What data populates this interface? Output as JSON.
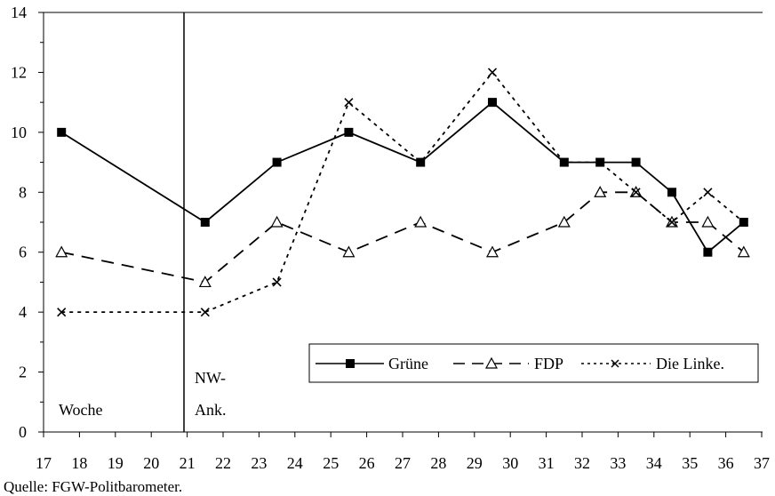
{
  "chart_data": {
    "type": "line",
    "x": [
      "17",
      "18",
      "19",
      "20",
      "21",
      "22",
      "23",
      "24",
      "25",
      "26",
      "27",
      "28",
      "29",
      "30",
      "31",
      "32",
      "33",
      "34",
      "35",
      "36",
      "37"
    ],
    "ylim": [
      0,
      14
    ],
    "yticks": [
      0,
      2,
      4,
      6,
      8,
      10,
      12,
      14
    ],
    "series": [
      {
        "name": "Grüne",
        "points": [
          [
            "17",
            10
          ],
          [
            "21",
            7
          ],
          [
            "23",
            9
          ],
          [
            "25",
            10
          ],
          [
            "27",
            9
          ],
          [
            "29",
            11
          ],
          [
            "31",
            9
          ],
          [
            "32",
            9
          ],
          [
            "33",
            9
          ],
          [
            "34",
            8
          ],
          [
            "35",
            6
          ],
          [
            "36",
            7
          ]
        ]
      },
      {
        "name": "FDP",
        "points": [
          [
            "17",
            6
          ],
          [
            "21",
            5
          ],
          [
            "23",
            7
          ],
          [
            "25",
            6
          ],
          [
            "27",
            7
          ],
          [
            "29",
            6
          ],
          [
            "31",
            7
          ],
          [
            "32",
            8
          ],
          [
            "33",
            8
          ],
          [
            "34",
            7
          ],
          [
            "35",
            7
          ],
          [
            "36",
            6
          ]
        ]
      },
      {
        "name": "Die Linke.",
        "points": [
          [
            "17",
            4
          ],
          [
            "21",
            4
          ],
          [
            "23",
            5
          ],
          [
            "25",
            11
          ],
          [
            "27",
            9
          ],
          [
            "29",
            12
          ],
          [
            "31",
            9
          ],
          [
            "32",
            9
          ],
          [
            "33",
            8
          ],
          [
            "34",
            7
          ],
          [
            "35",
            8
          ],
          [
            "36",
            7
          ]
        ]
      }
    ],
    "annotations": {
      "week_label": "Woche",
      "event_label_line1": "NW-",
      "event_label_line2": "Ank.",
      "event_position": "between 20 and 21"
    },
    "legend_position": "bottom-right",
    "source": "Quelle: FGW-Politbarometer.",
    "grid": false
  }
}
